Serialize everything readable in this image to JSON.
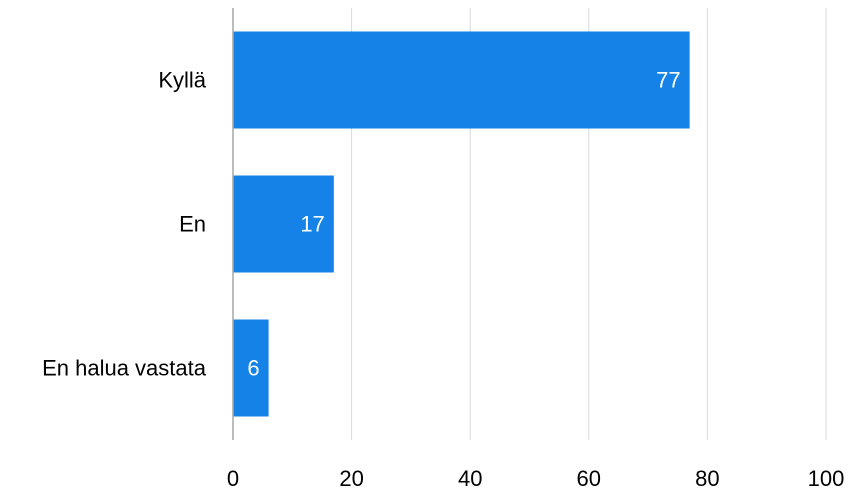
{
  "chart_data": {
    "type": "bar",
    "orientation": "horizontal",
    "categories": [
      "Kyllä",
      "En",
      "En halua vastata"
    ],
    "values": [
      77,
      17,
      6
    ],
    "data_labels": [
      "77",
      "17",
      "6"
    ],
    "xlim": [
      0,
      100
    ],
    "x_ticks": [
      0,
      20,
      40,
      60,
      80,
      100
    ],
    "x_tick_labels": [
      "0",
      "20",
      "40",
      "60",
      "80",
      "100"
    ],
    "bar_color": "#1482e6",
    "label_color": "#ffffff",
    "grid": true,
    "legend": "none"
  }
}
